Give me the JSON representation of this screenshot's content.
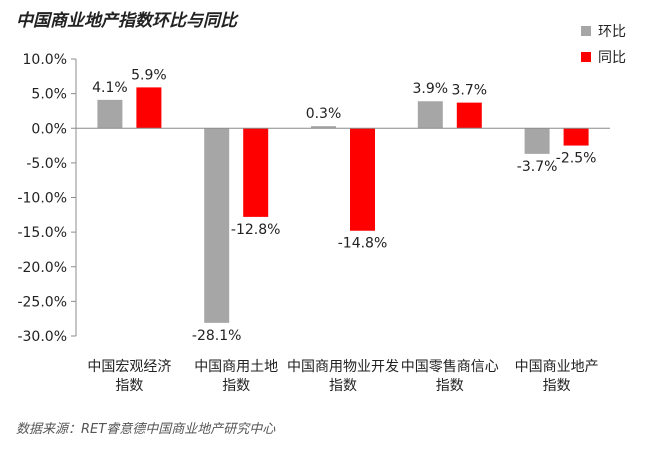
{
  "chart_data": {
    "type": "bar",
    "title": "中国商业地产指数环比与同比",
    "categories": [
      [
        "中国宏观经济",
        "指数"
      ],
      [
        "中国商用土地",
        "指数"
      ],
      [
        "中国商用物业开发",
        "指数"
      ],
      [
        "中国零售商信心",
        "指数"
      ],
      [
        "中国商业地产",
        "指数"
      ]
    ],
    "series": [
      {
        "name": "环比",
        "color": "#a6a6a6",
        "values": [
          4.1,
          -28.1,
          0.3,
          3.9,
          -3.7
        ],
        "labels": [
          "4.1%",
          "-28.1%",
          "0.3%",
          "3.9%",
          "-3.7%"
        ]
      },
      {
        "name": "同比",
        "color": "#ff0000",
        "values": [
          5.9,
          -12.8,
          -14.8,
          3.7,
          -2.5
        ],
        "labels": [
          "5.9%",
          "-12.8%",
          "-14.8%",
          "3.7%",
          "-2.5%"
        ]
      }
    ],
    "ylim": [
      -30,
      10
    ],
    "yticks": [
      10,
      5,
      0,
      -5,
      -10,
      -15,
      -20,
      -25,
      -30
    ],
    "ytick_labels": [
      "10.0%",
      "5.0%",
      "0.0%",
      "-5.0%",
      "-10.0%",
      "-15.0%",
      "-20.0%",
      "-25.0%",
      "-30.0%"
    ],
    "legend_position": "top-right",
    "grid": false
  },
  "source": "数据来源：RET睿意德中国商业地产研究中心"
}
